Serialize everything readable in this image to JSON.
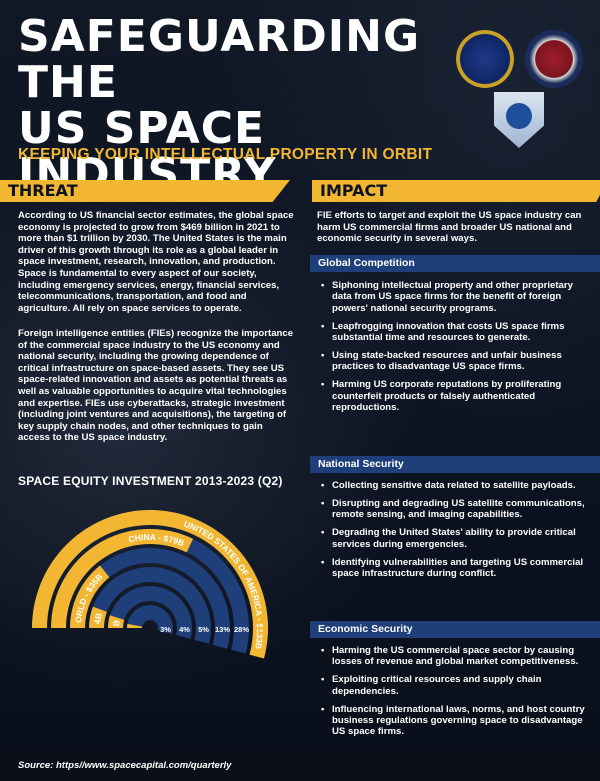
{
  "header": {
    "title_line1": "SAFEGUARDING THE",
    "title_line2": "US SPACE INDUSTRY",
    "subtitle": "KEEPING YOUR INTELLECTUAL PROPERTY IN ORBIT",
    "logos": [
      "fbi-seal-icon",
      "ncsc-seal-icon",
      "space-force-shield-icon"
    ]
  },
  "threat": {
    "heading": "THREAT",
    "paragraph1": "According to US financial sector estimates, the global space economy is projected to grow from $469 billion in 2021 to more than $1 trillion by 2030. The United States is the main driver of this growth through its role as a global leader in space investment, research, innovation, and production. Space is fundamental to every aspect of our society, including emergency services, energy, financial services, telecommunications, transportation, and food and agriculture. All rely on space services to operate.",
    "paragraph2": "Foreign intelligence entities (FIEs) recognize the importance of the commercial space industry to the US economy and national security, including the growing dependence of critical infrastructure on space-based assets. They see US space-related innovation and assets as potential threats as well as valuable opportunities to acquire vital technologies and expertise. FIEs use cyberattacks, strategic investment (including joint ventures and acquisitions), the targeting of key supply chain nodes, and other techniques to gain access to the US space industry."
  },
  "impact": {
    "heading": "IMPACT",
    "intro": "FIE efforts to target and exploit the US space industry can harm US commercial firms and broader US national and economic security in several ways.",
    "sections": [
      {
        "title": "Global Competition",
        "bullets": [
          "Siphoning intellectual property and other proprietary data from US space firms for the benefit of foreign powers' national security programs.",
          "Leapfrogging innovation that costs US space firms substantial time and resources to generate.",
          "Using state-backed resources and unfair business practices to disadvantage US space firms.",
          "Harming US corporate reputations by proliferating counterfeit products or falsely authenticated reproductions."
        ]
      },
      {
        "title": "National Security",
        "bullets": [
          "Collecting sensitive data related to satellite payloads.",
          "Disrupting and degrading US satellite communications, remote sensing, and imaging capabilities.",
          "Degrading the United States' ability to provide critical services during emergencies.",
          "Identifying vulnerabilities and targeting US commercial space infrastructure during conflict."
        ]
      },
      {
        "title": "Economic Security",
        "bullets": [
          "Harming the US commercial space sector by causing losses of revenue and global market competitiveness.",
          "Exploiting critical resources and supply chain dependencies.",
          "Influencing international laws, norms, and host country business regulations governing space to disadvantage US space firms."
        ]
      }
    ]
  },
  "chart_title": "SPACE EQUITY INVESTMENT 2013-2023 (Q2)",
  "chart_data": {
    "type": "pie",
    "categories": [
      "UNITED STATES OF AMERICA",
      "CHINA",
      "REST OF THE WORLD",
      "SINGAPORE",
      "UNITED KINGDOM",
      "INDIA"
    ],
    "values": [
      133,
      79,
      35,
      14,
      12,
      7
    ],
    "value_labels": [
      "$133B",
      "$79B",
      "$35B",
      "$14B",
      "$12B",
      "$7B"
    ],
    "percent_labels": [
      "47%",
      "28%",
      "13%",
      "5%",
      "4%",
      "3%"
    ],
    "percents": [
      47,
      28,
      13,
      5,
      4,
      3
    ],
    "title": "SPACE EQUITY INVESTMENT 2013-2023 (Q2)",
    "colors": {
      "fill": "#f2b632",
      "track": "#1f3f7a",
      "text": "#ffffff"
    }
  },
  "source": "Source: https//www.spacecapital.com/quarterly"
}
